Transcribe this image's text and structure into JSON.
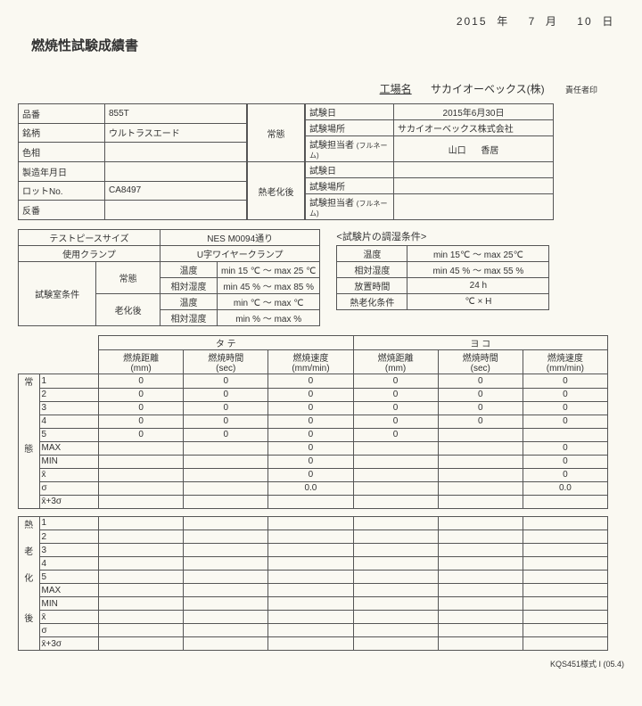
{
  "date_top": {
    "y": "2015",
    "yl": "年",
    "m": "7",
    "ml": "月",
    "d": "10",
    "dl": "日"
  },
  "title": "燃焼性試験成績書",
  "factory": {
    "label": "工場名",
    "name": "サカイオーベックス(株)",
    "seal": "責任者印"
  },
  "info": {
    "hinban_l": "品番",
    "hinban_v": "855T",
    "meigara_l": "銘柄",
    "meigara_v": "ウルトラスエード",
    "shikiso_l": "色相",
    "shikiso_v": "",
    "seizo_l": "製造年月日",
    "seizo_v": "",
    "lot_l": "ロットNo.",
    "lot_v": "CA8497",
    "tanban_l": "反番",
    "tanban_v": "",
    "jotai_l": "常態",
    "jotai2_l": "熱老化後",
    "shikenbi_l": "試験日",
    "shikenbi_v": "2015年6月30日",
    "basho_l": "試験場所",
    "basho_v": "サカイオーベックス株式会社",
    "tantou_l": "試験担当者",
    "tantou_sub": "(フルネーム)",
    "tantou_v1": "山口",
    "tantou_v2": "香居",
    "shikenbi2_l": "試験日",
    "basho2_l": "試験場所",
    "tantou2_l": "試験担当者"
  },
  "cond": {
    "tp_l": "テストピースサイズ",
    "tp_v": "NES M0094通り",
    "clamp_l": "使用クランプ",
    "clamp_v": "U字ワイヤークランプ",
    "shitsu_l": "試験室条件",
    "jotai": "常態",
    "rouka": "老化後",
    "ondo_l": "温度",
    "shitsudo_l": "相対湿度",
    "ondo1": "min 15 ℃ ～ max 25 ℃",
    "shitsudo1": "min 45 % ～ max 85 %",
    "ondo2": "min    ℃ ～ max    ℃",
    "shitsudo2": "min    % ～ max    %",
    "kata_title": "<試験片の調湿条件>",
    "k_ondo_l": "温度",
    "k_ondo_v": "min 15℃ ～ max 25℃",
    "k_shitsudo_l": "相対湿度",
    "k_shitsudo_v": "min 45 % ～ max 55 %",
    "k_hochi_l": "放置時間",
    "k_hochi_v": "24 h",
    "k_rouka_l": "熱老化条件",
    "k_rouka_v": "℃ ×       H"
  },
  "data": {
    "tate": "タ      テ",
    "yoko": "ヨ      コ",
    "h1": "燃焼距離",
    "h1u": "(mm)",
    "h2": "燃焼時間",
    "h2u": "(sec)",
    "h3": "燃焼速度",
    "h3u": "(mm/min)",
    "j": "常",
    "t": "態",
    "n": "熱",
    "r": "老",
    "k": "化",
    "g": "後",
    "rows": [
      "1",
      "2",
      "3",
      "4",
      "5",
      "MAX",
      "MIN",
      "x̄",
      "σ",
      "x̄+3σ"
    ],
    "vals_tate": [
      [
        "0",
        "0",
        "0",
        "0",
        "0",
        "0"
      ],
      [
        "0",
        "0",
        "0",
        "0",
        "0",
        "0"
      ],
      [
        "0",
        "0",
        "0",
        "0",
        "0",
        "0"
      ],
      [
        "0",
        "0",
        "0",
        "0",
        "0",
        "0"
      ],
      [
        "0",
        "0",
        "0",
        "0",
        "",
        ""
      ],
      [
        "",
        "",
        "0",
        "",
        "",
        "0"
      ],
      [
        "",
        "",
        "0",
        "",
        "",
        "0"
      ],
      [
        "",
        "",
        "0",
        "",
        "",
        "0"
      ],
      [
        "",
        "",
        "0.0",
        "",
        "",
        "0.0"
      ],
      [
        "",
        "",
        "",
        "",
        "",
        ""
      ]
    ]
  },
  "footer": "KQS451様式 I (05.4)"
}
